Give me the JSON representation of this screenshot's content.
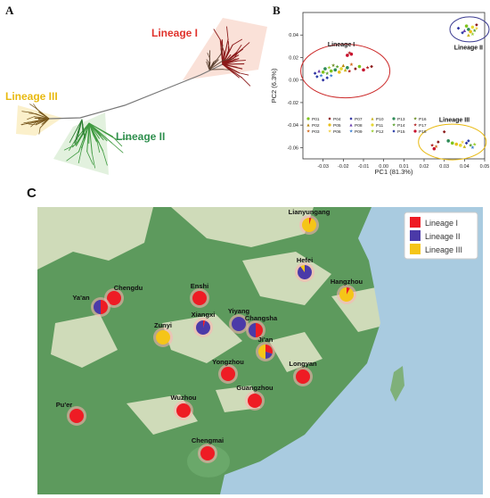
{
  "panels": {
    "a": "A",
    "b": "B",
    "c": "C"
  },
  "colors": {
    "lineage1": "#e0322c",
    "lineage2": "#2f8f4e",
    "lineage3": "#e8b90f",
    "map_lineage1": "#ee1c24",
    "map_lineage2": "#4b3aa8",
    "map_lineage3": "#f5c518"
  },
  "tree": {
    "labels": {
      "l1": "Lineage I",
      "l2": "Lineage II",
      "l3": "Lineage III"
    }
  },
  "chart_data": {
    "type": "scatter",
    "xlabel": "PC1 (81.3%)",
    "ylabel": "PC2 (6.3%)",
    "xlim": [
      -0.04,
      0.05
    ],
    "ylim": [
      -0.07,
      0.06
    ],
    "xticks": [
      "-0.03",
      "-0.02",
      "-0.01",
      "0.00",
      "0.01",
      "0.02",
      "0.03",
      "0.04",
      "0.05"
    ],
    "xtick_values": [
      -0.03,
      -0.02,
      -0.01,
      0.0,
      0.01,
      0.02,
      0.03,
      0.04,
      0.05
    ],
    "yticks": [
      "0.04",
      "0.02",
      "0.00",
      "-0.02",
      "-0.04",
      "-0.06"
    ],
    "ytick_values": [
      0.04,
      0.02,
      0.0,
      -0.02,
      -0.04,
      -0.06
    ],
    "annotations": [
      "Lineage I",
      "Lineage II",
      "Lineage III"
    ],
    "legend_position": "bottom-left",
    "series": [
      {
        "name": "P01",
        "color": "#7fc31c",
        "marker": "circle"
      },
      {
        "name": "P02",
        "color": "#b8860b",
        "marker": "triangle"
      },
      {
        "name": "P03",
        "color": "#d2691e",
        "marker": "star"
      },
      {
        "name": "P04",
        "color": "#8b1a1a",
        "marker": "diamond"
      },
      {
        "name": "P05",
        "color": "#e8c01a",
        "marker": "circle"
      },
      {
        "name": "P06",
        "color": "#f2d24b",
        "marker": "star"
      },
      {
        "name": "P07",
        "color": "#2b2fa0",
        "marker": "diamond"
      },
      {
        "name": "P08",
        "color": "#6a3fb0",
        "marker": "triangle"
      },
      {
        "name": "P09",
        "color": "#3a7fd0",
        "marker": "star"
      },
      {
        "name": "P10",
        "color": "#c9b41a",
        "marker": "triangle"
      },
      {
        "name": "P11",
        "color": "#e6d733",
        "marker": "circle"
      },
      {
        "name": "P12",
        "color": "#9acd32",
        "marker": "star"
      },
      {
        "name": "P13",
        "color": "#2e8b57",
        "marker": "circle"
      },
      {
        "name": "P14",
        "color": "#5aa02c",
        "marker": "star"
      },
      {
        "name": "P15",
        "color": "#2c3fa8",
        "marker": "diamond"
      },
      {
        "name": "P16",
        "color": "#6b8e23",
        "marker": "star"
      },
      {
        "name": "P17",
        "color": "#b22222",
        "marker": "star"
      },
      {
        "name": "P18",
        "color": "#c8102e",
        "marker": "circle"
      }
    ],
    "clusters": [
      {
        "name": "Lineage I",
        "points": [
          [
            -0.034,
            0.006,
            "P07"
          ],
          [
            -0.033,
            0.003,
            "P15"
          ],
          [
            -0.032,
            0.008,
            "P08"
          ],
          [
            -0.031,
            0.004,
            "P09"
          ],
          [
            -0.03,
            0.007,
            "P01"
          ],
          [
            -0.029,
            0.01,
            "P13"
          ],
          [
            -0.028,
            0.006,
            "P14"
          ],
          [
            -0.027,
            0.011,
            "P12"
          ],
          [
            -0.026,
            0.008,
            "P01"
          ],
          [
            -0.025,
            0.013,
            "P16"
          ],
          [
            -0.024,
            0.009,
            "P13"
          ],
          [
            -0.023,
            0.012,
            "P14"
          ],
          [
            -0.022,
            0.007,
            "P05"
          ],
          [
            -0.021,
            0.01,
            "P11"
          ],
          [
            -0.02,
            0.013,
            "P02"
          ],
          [
            -0.019,
            0.009,
            "P10"
          ],
          [
            -0.018,
            0.011,
            "P13"
          ],
          [
            -0.017,
            0.008,
            "P17"
          ],
          [
            -0.016,
            0.014,
            "P03"
          ],
          [
            -0.014,
            0.01,
            "P04"
          ],
          [
            -0.012,
            0.012,
            "P01"
          ],
          [
            -0.01,
            0.009,
            "P18"
          ],
          [
            -0.018,
            0.022,
            "P18"
          ],
          [
            -0.017,
            0.024,
            "P17"
          ],
          [
            -0.016,
            0.023,
            "P18"
          ],
          [
            -0.008,
            0.011,
            "P17"
          ],
          [
            -0.006,
            0.012,
            "P04"
          ],
          [
            -0.03,
            0.0,
            "P07"
          ],
          [
            -0.028,
            0.002,
            "P15"
          ],
          [
            -0.026,
            0.004,
            "P09"
          ]
        ]
      },
      {
        "name": "Lineage II",
        "points": [
          [
            0.037,
            0.046,
            "P07"
          ],
          [
            0.039,
            0.042,
            "P15"
          ],
          [
            0.04,
            0.044,
            "P08"
          ],
          [
            0.041,
            0.048,
            "P01"
          ],
          [
            0.042,
            0.045,
            "P13"
          ],
          [
            0.043,
            0.043,
            "P05"
          ],
          [
            0.044,
            0.047,
            "P11"
          ],
          [
            0.045,
            0.044,
            "P14"
          ],
          [
            0.046,
            0.046,
            "P06"
          ],
          [
            0.044,
            0.041,
            "P12"
          ],
          [
            0.042,
            0.04,
            "P10"
          ],
          [
            0.046,
            0.049,
            "P04"
          ]
        ]
      },
      {
        "name": "Lineage III",
        "points": [
          [
            0.024,
            -0.058,
            "P17"
          ],
          [
            0.025,
            -0.061,
            "P18"
          ],
          [
            0.026,
            -0.059,
            "P03"
          ],
          [
            0.027,
            -0.055,
            "P04"
          ],
          [
            0.03,
            -0.046,
            "P04"
          ],
          [
            0.032,
            -0.054,
            "P13"
          ],
          [
            0.034,
            -0.056,
            "P01"
          ],
          [
            0.036,
            -0.057,
            "P05"
          ],
          [
            0.038,
            -0.058,
            "P11"
          ],
          [
            0.039,
            -0.055,
            "P06"
          ],
          [
            0.04,
            -0.059,
            "P10"
          ],
          [
            0.041,
            -0.056,
            "P07"
          ],
          [
            0.042,
            -0.054,
            "P15"
          ],
          [
            0.043,
            -0.058,
            "P14"
          ],
          [
            0.044,
            -0.06,
            "P09"
          ],
          [
            0.045,
            -0.057,
            "P12"
          ]
        ]
      }
    ]
  },
  "map": {
    "legend": [
      {
        "label": "Lineage I",
        "color": "#ee1c24"
      },
      {
        "label": "Lineage II",
        "color": "#4b3aa8"
      },
      {
        "label": "Lineage III",
        "color": "#f5c518"
      }
    ],
    "sites": [
      {
        "name": "Lianyungang",
        "fractions": [
          0.05,
          0.0,
          0.95
        ]
      },
      {
        "name": "Hefei",
        "fractions": [
          0.0,
          0.9,
          0.1
        ]
      },
      {
        "name": "Hangzhou",
        "fractions": [
          0.08,
          0.0,
          0.92
        ]
      },
      {
        "name": "Chengdu",
        "fractions": [
          1.0,
          0.0,
          0.0
        ]
      },
      {
        "name": "Ya'an",
        "fractions": [
          0.5,
          0.5,
          0.0
        ]
      },
      {
        "name": "Enshi",
        "fractions": [
          1.0,
          0.0,
          0.0
        ]
      },
      {
        "name": "Zunyi",
        "fractions": [
          0.0,
          0.0,
          1.0
        ]
      },
      {
        "name": "Xiangxi",
        "fractions": [
          0.05,
          0.95,
          0.0
        ]
      },
      {
        "name": "Yiyang",
        "fractions": [
          0.0,
          1.0,
          0.0
        ]
      },
      {
        "name": "Changsha",
        "fractions": [
          0.5,
          0.5,
          0.0
        ]
      },
      {
        "name": "Ji'an",
        "fractions": [
          0.3,
          0.2,
          0.5
        ]
      },
      {
        "name": "Yongzhou",
        "fractions": [
          1.0,
          0.0,
          0.0
        ]
      },
      {
        "name": "Longyan",
        "fractions": [
          1.0,
          0.0,
          0.0
        ]
      },
      {
        "name": "Guangzhou",
        "fractions": [
          1.0,
          0.0,
          0.0
        ]
      },
      {
        "name": "Pu'er",
        "fractions": [
          1.0,
          0.0,
          0.0
        ]
      },
      {
        "name": "Wuzhou",
        "fractions": [
          1.0,
          0.0,
          0.0
        ]
      },
      {
        "name": "Chengmai",
        "fractions": [
          1.0,
          0.0,
          0.0
        ]
      }
    ]
  }
}
